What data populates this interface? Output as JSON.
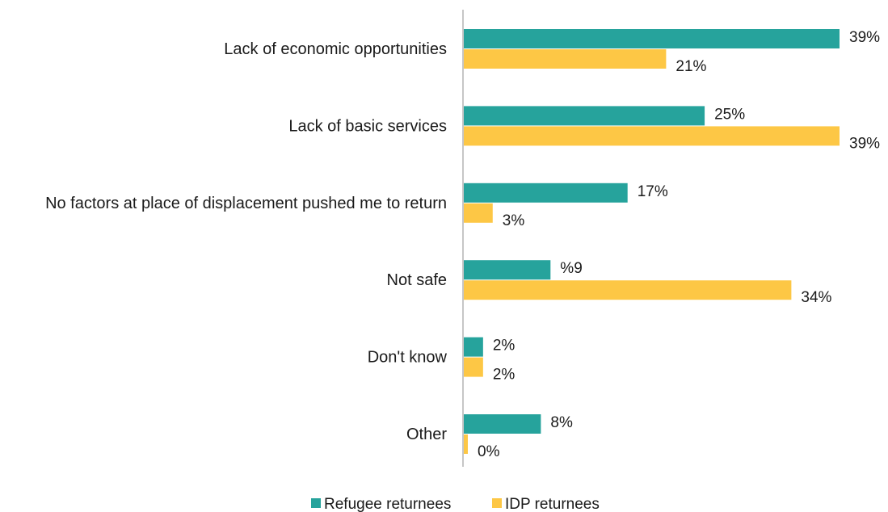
{
  "chart_data": {
    "type": "bar",
    "orientation": "horizontal",
    "categories": [
      "Lack of economic opportunities",
      "Lack of basic services",
      "No factors at place of displacement pushed me to return",
      "Not safe",
      "Don't know",
      "Other"
    ],
    "series": [
      {
        "name": "Refugee returnees",
        "color": "#26A39C",
        "values": [
          39,
          25,
          17,
          9,
          2,
          8
        ],
        "labels": [
          "39%",
          "25%",
          "17%",
          "%9",
          "2%",
          "8%"
        ]
      },
      {
        "name": "IDP returnees",
        "color": "#FDC745",
        "values": [
          21,
          39,
          3,
          34,
          2,
          0
        ],
        "labels": [
          "21%",
          "39%",
          "3%",
          "34%",
          "2%",
          "0%"
        ]
      }
    ],
    "title": "",
    "xlabel": "",
    "ylabel": "",
    "xlim": [
      0,
      39
    ],
    "grid": false,
    "legend_position": "bottom"
  }
}
